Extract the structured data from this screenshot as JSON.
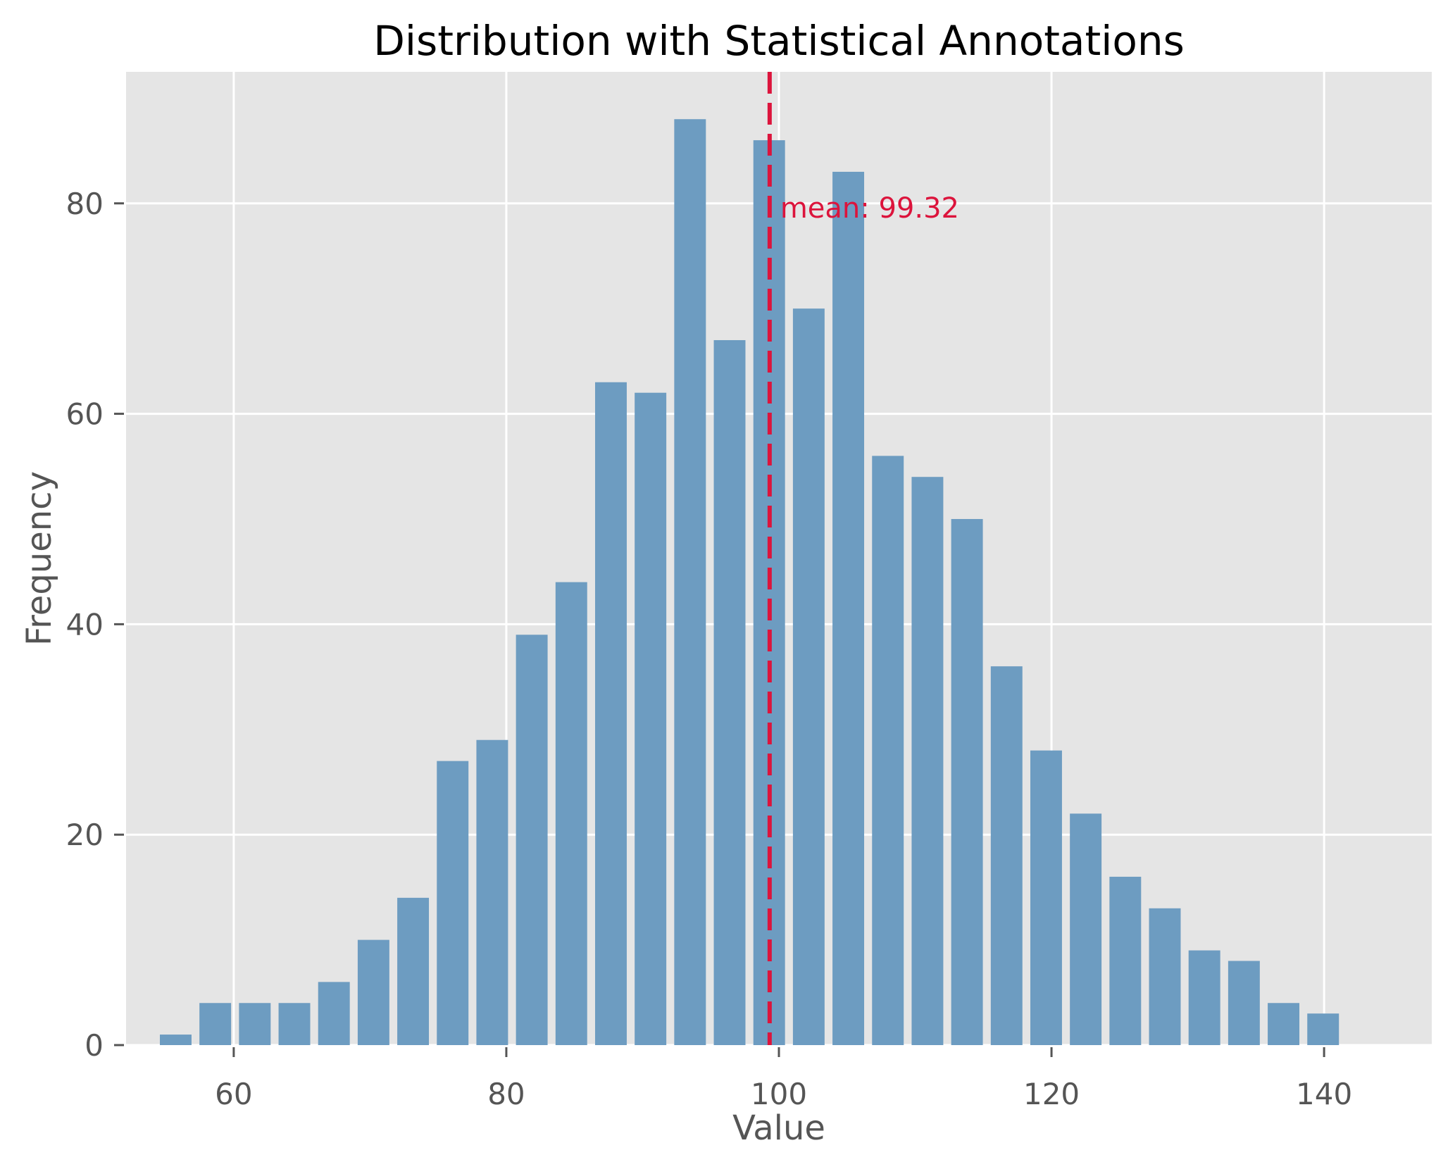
{
  "chart_data": {
    "type": "bar",
    "title": "Distribution with Statistical Annotations",
    "xlabel": "Value",
    "ylabel": "Frequency",
    "xlim": [
      52.1,
      147.9
    ],
    "ylim": [
      0,
      92.5
    ],
    "grid": true,
    "bin_start": 54.29,
    "bin_width": 2.903,
    "bar_relative_width": 0.8,
    "values": [
      1,
      4,
      4,
      4,
      6,
      10,
      14,
      27,
      29,
      39,
      44,
      63,
      62,
      88,
      67,
      86,
      70,
      83,
      56,
      54,
      50,
      36,
      28,
      22,
      16,
      13,
      9,
      8,
      4,
      3
    ],
    "x_ticks": [
      60,
      80,
      100,
      120,
      140
    ],
    "y_ticks": [
      0,
      20,
      40,
      60,
      80
    ],
    "mean": 99.32,
    "mean_label": "mean: 99.32",
    "colors": {
      "bars": "#6d9cc1",
      "mean_line": "#dc143c",
      "background": "#e5e5e5",
      "grid": "#ffffff",
      "text": "#555555"
    }
  }
}
